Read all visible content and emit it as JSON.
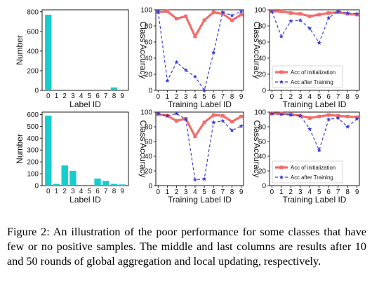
{
  "figure": {
    "caption": "Figure 2: An illustration of the poor performance for some classes that have few or no positive samples. The middle and last columns are results after 10 and 50 rounds of global aggregation and local updating, respectively."
  },
  "chart_data": [
    {
      "type": "bar",
      "title": "",
      "xlabel": "Label ID",
      "ylabel": "Number",
      "categories": [
        "0",
        "1",
        "2",
        "3",
        "4",
        "5",
        "6",
        "7",
        "8",
        "9"
      ],
      "values": [
        770,
        0,
        0,
        0,
        0,
        0,
        0,
        0,
        30,
        0
      ],
      "ylim": [
        0,
        820
      ],
      "yticks": [
        "0",
        "200",
        "400",
        "600",
        "800"
      ],
      "color": "#17cccc"
    },
    {
      "type": "line",
      "title": "",
      "xlabel": "Training Label ID",
      "ylabel": "Class Accuracy",
      "x": [
        "0",
        "1",
        "2",
        "3",
        "4",
        "5",
        "6",
        "7",
        "8",
        "9"
      ],
      "ylim": [
        0,
        100
      ],
      "yticks": [
        "0",
        "20",
        "40",
        "60",
        "80",
        "100"
      ],
      "series": [
        {
          "name": "Acc of initialization",
          "values": [
            97,
            98,
            89,
            92,
            67,
            87,
            97,
            95,
            87,
            94
          ],
          "color": "#f26d6d"
        },
        {
          "name": "Acc after Training",
          "values": [
            98,
            12,
            35,
            25,
            17,
            0,
            47,
            97,
            93,
            98
          ],
          "color": "#3b3bd6"
        }
      ]
    },
    {
      "type": "line",
      "title": "",
      "xlabel": "Training Label ID",
      "ylabel": "Class Accuracy",
      "x": [
        "0",
        "1",
        "2",
        "3",
        "4",
        "5",
        "6",
        "7",
        "8",
        "9"
      ],
      "ylim": [
        0,
        100
      ],
      "yticks": [
        "0",
        "20",
        "40",
        "60",
        "80",
        "100"
      ],
      "legend": "lower-left",
      "series": [
        {
          "name": "Acc of initialization",
          "values": [
            98,
            98,
            96,
            95,
            92,
            94,
            96,
            97,
            95,
            94
          ],
          "color": "#f26d6d"
        },
        {
          "name": "Acc after Training",
          "values": [
            98,
            67,
            86,
            87,
            77,
            59,
            90,
            98,
            96,
            95
          ],
          "color": "#3b3bd6"
        }
      ]
    },
    {
      "type": "bar",
      "title": "",
      "xlabel": "Label ID",
      "ylabel": "Number",
      "categories": [
        "0",
        "1",
        "2",
        "3",
        "4",
        "5",
        "6",
        "7",
        "8",
        "9"
      ],
      "values": [
        590,
        15,
        170,
        125,
        0,
        0,
        60,
        40,
        15,
        10
      ],
      "ylim": [
        0,
        620
      ],
      "yticks": [
        "0",
        "100",
        "200",
        "300",
        "400",
        "500",
        "600"
      ],
      "color": "#17cccc"
    },
    {
      "type": "line",
      "title": "",
      "xlabel": "Training Label ID",
      "ylabel": "Class Accuracy",
      "x": [
        "0",
        "1",
        "2",
        "3",
        "4",
        "5",
        "6",
        "7",
        "8",
        "9"
      ],
      "ylim": [
        0,
        100
      ],
      "yticks": [
        "0",
        "20",
        "40",
        "60",
        "80",
        "100"
      ],
      "series": [
        {
          "name": "Acc of initialization",
          "values": [
            97,
            95,
            88,
            91,
            67,
            86,
            96,
            95,
            87,
            94
          ],
          "color": "#f26d6d"
        },
        {
          "name": "Acc after Training",
          "values": [
            98,
            95,
            98,
            90,
            8,
            9,
            86,
            88,
            75,
            81
          ],
          "color": "#3b3bd6"
        }
      ]
    },
    {
      "type": "line",
      "title": "",
      "xlabel": "Training Label ID",
      "ylabel": "Class Accuracy",
      "x": [
        "0",
        "1",
        "2",
        "3",
        "4",
        "5",
        "6",
        "7",
        "8",
        "9"
      ],
      "ylim": [
        0,
        100
      ],
      "yticks": [
        "0",
        "20",
        "40",
        "60",
        "80",
        "100"
      ],
      "legend": "lower-left",
      "series": [
        {
          "name": "Acc of initialization",
          "values": [
            98,
            98,
            97,
            95,
            92,
            94,
            96,
            95,
            94,
            93
          ],
          "color": "#f26d6d"
        },
        {
          "name": "Acc after Training",
          "values": [
            98,
            97,
            96,
            95,
            77,
            48,
            90,
            92,
            80,
            91
          ],
          "color": "#3b3bd6"
        }
      ]
    }
  ]
}
